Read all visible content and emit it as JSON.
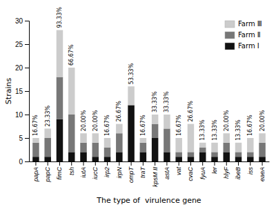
{
  "chart_data": {
    "type": "bar",
    "stacked": true,
    "categories": [
      "papA",
      "papC",
      "fimC",
      "tsh",
      "iutA",
      "iucC",
      "irp2",
      "irpN",
      "ompT",
      "traT",
      "kpsM II",
      "astA",
      "vat",
      "cvaC",
      "fyuA",
      "ler",
      "hlyF",
      "ibeB",
      "iss",
      "eaeA"
    ],
    "series": [
      {
        "name": "Farm Ⅰ",
        "color": "#111111",
        "values": [
          1,
          1,
          9,
          2,
          2,
          1,
          1,
          2,
          12,
          2,
          5,
          2,
          1,
          1,
          2,
          1,
          2,
          1,
          1,
          1
        ]
      },
      {
        "name": "Farm Ⅱ",
        "color": "#777777",
        "values": [
          3,
          4,
          9,
          8,
          2,
          3,
          2,
          4,
          0,
          2,
          3,
          5,
          1,
          1,
          1,
          1,
          2,
          1,
          1,
          3
        ]
      },
      {
        "name": "Farm Ⅲ",
        "color": "#cccccc",
        "values": [
          1,
          2,
          10,
          10,
          2,
          2,
          2,
          2,
          4,
          1,
          2,
          3,
          3,
          6,
          1,
          2,
          2,
          2,
          3,
          2
        ]
      }
    ],
    "annotations": [
      "16.67%",
      "23.33%",
      "93.33%",
      "66.67%",
      "20.00%",
      "20.00%",
      "16.67%",
      "26.67%",
      "53.33%",
      "16.67%",
      "33.33%",
      "33.33%",
      "16.67%",
      "26.67%",
      "13.33%",
      "13.33%",
      "20.00%",
      "13.33%",
      "16.67%",
      "20.00%"
    ],
    "xlabel": "The type of  virulence gene",
    "ylabel": "Strains",
    "ylim": [
      0,
      30
    ],
    "yticks": [
      0,
      5,
      10,
      15,
      20,
      25,
      30
    ],
    "grid": false,
    "legend": "top-right"
  }
}
